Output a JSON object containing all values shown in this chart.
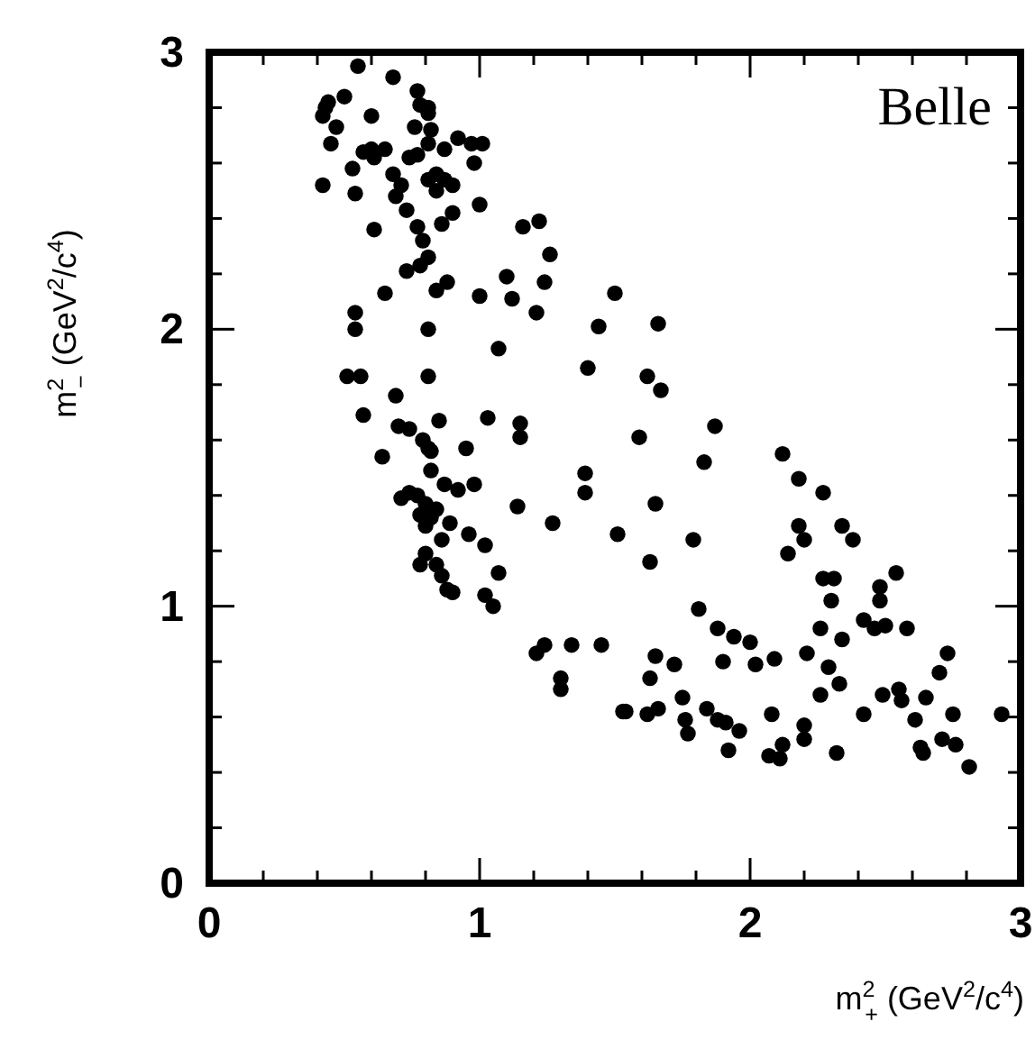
{
  "chart_data": {
    "type": "scatter",
    "xlabel": "m$^{2}$$_{+}$ (GeV$^{2}$/c$^{4}$)",
    "ylabel": "m$^{2}$$_{−}$ (GeV$^{2}$/c$^{4}$)",
    "annotations": [
      "Belle"
    ],
    "xlim": [
      0,
      3
    ],
    "ylim": [
      0,
      3
    ],
    "xticks": [
      0,
      {
        "value": 0.2,
        "label": null
      },
      {
        "value": 0.4,
        "label": null
      },
      {
        "value": 0.6,
        "label": null
      },
      {
        "value": 0.8,
        "label": null
      },
      1,
      {
        "value": 1.2,
        "label": null
      },
      {
        "value": 1.4,
        "label": null
      },
      {
        "value": 1.6,
        "label": null
      },
      {
        "value": 1.8,
        "label": null
      },
      2,
      {
        "value": 2.2,
        "label": null
      },
      {
        "value": 2.4,
        "label": null
      },
      {
        "value": 2.6,
        "label": null
      },
      {
        "value": 2.8,
        "label": null
      },
      3
    ],
    "yticks": [
      0,
      {
        "value": 0.2,
        "label": null
      },
      {
        "value": 0.4,
        "label": null
      },
      {
        "value": 0.6,
        "label": null
      },
      {
        "value": 0.8,
        "label": null
      },
      1,
      {
        "value": 1.2,
        "label": null
      },
      {
        "value": 1.4,
        "label": null
      },
      {
        "value": 1.6,
        "label": null
      },
      {
        "value": 1.8,
        "label": null
      },
      2,
      {
        "value": 2.2,
        "label": null
      },
      {
        "value": 2.4,
        "label": null
      },
      {
        "value": 2.6,
        "label": null
      },
      {
        "value": 2.8,
        "label": null
      },
      3
    ],
    "marker": "circle",
    "color": "#000000",
    "x": [
      0.55,
      0.68,
      0.77,
      0.5,
      0.44,
      0.43,
      0.42,
      0.47,
      0.6,
      0.78,
      0.81,
      0.81,
      0.76,
      0.45,
      0.57,
      0.61,
      0.65,
      0.6,
      0.74,
      0.77,
      0.81,
      0.82,
      0.87,
      0.92,
      0.97,
      1.01,
      0.98,
      0.53,
      0.42,
      0.54,
      0.68,
      0.71,
      0.69,
      0.81,
      0.84,
      0.84,
      0.87,
      0.9,
      1.0,
      0.73,
      0.77,
      0.9,
      0.86,
      0.61,
      0.79,
      0.81,
      0.78,
      0.73,
      0.84,
      0.88,
      0.65,
      1.0,
      1.1,
      1.12,
      1.16,
      1.22,
      1.26,
      1.24,
      1.21,
      1.5,
      1.44,
      1.07,
      1.4,
      0.54,
      0.54,
      0.81,
      0.51,
      0.56,
      0.81,
      0.69,
      0.57,
      0.7,
      0.74,
      0.85,
      1.03,
      1.15,
      1.15,
      0.79,
      0.81,
      0.95,
      0.64,
      0.82,
      0.82,
      0.87,
      0.92,
      0.98,
      0.74,
      0.71,
      0.77,
      0.8,
      0.78,
      0.82,
      0.8,
      0.84,
      0.89,
      0.86,
      0.96,
      1.02,
      0.8,
      0.78,
      0.84,
      0.86,
      0.88,
      0.9,
      1.02,
      1.05,
      1.07,
      1.14,
      1.27,
      1.39,
      1.39,
      1.51,
      1.21,
      1.24,
      1.34,
      1.45,
      1.3,
      1.3,
      1.53,
      1.66,
      1.62,
      1.67,
      1.87,
      1.59,
      1.83,
      1.65,
      1.63,
      1.79,
      2.12,
      2.18,
      2.27,
      2.18,
      2.2,
      2.34,
      2.38,
      2.14,
      2.27,
      2.31,
      2.3,
      2.48,
      2.48,
      2.54,
      1.81,
      1.88,
      1.94,
      2.0,
      1.65,
      1.72,
      1.9,
      2.02,
      2.09,
      2.21,
      2.26,
      2.34,
      2.29,
      2.33,
      2.26,
      2.42,
      2.46,
      2.5,
      2.58,
      1.63,
      1.75,
      1.54,
      1.62,
      1.66,
      1.76,
      1.77,
      1.84,
      1.88,
      1.91,
      1.96,
      1.92,
      2.08,
      2.07,
      2.11,
      2.12,
      2.2,
      2.2,
      2.32,
      2.42,
      2.49,
      2.55,
      2.56,
      2.65,
      2.61,
      2.63,
      2.64,
      2.7,
      2.73,
      2.75,
      2.71,
      2.76,
      2.81,
      2.93
    ],
    "values": [
      2.95,
      2.91,
      2.86,
      2.84,
      2.82,
      2.8,
      2.77,
      2.73,
      2.77,
      2.81,
      2.8,
      2.78,
      2.73,
      2.67,
      2.64,
      2.62,
      2.65,
      2.65,
      2.62,
      2.63,
      2.67,
      2.72,
      2.65,
      2.69,
      2.67,
      2.67,
      2.6,
      2.58,
      2.52,
      2.49,
      2.56,
      2.52,
      2.48,
      2.54,
      2.56,
      2.5,
      2.54,
      2.52,
      2.45,
      2.43,
      2.37,
      2.42,
      2.38,
      2.36,
      2.32,
      2.26,
      2.23,
      2.21,
      2.14,
      2.17,
      2.13,
      2.12,
      2.19,
      2.11,
      2.37,
      2.39,
      2.27,
      2.17,
      2.06,
      2.13,
      2.01,
      1.93,
      1.86,
      2.06,
      2.0,
      2.0,
      1.83,
      1.83,
      1.83,
      1.76,
      1.69,
      1.65,
      1.64,
      1.67,
      1.68,
      1.66,
      1.61,
      1.6,
      1.57,
      1.57,
      1.54,
      1.56,
      1.49,
      1.44,
      1.42,
      1.44,
      1.41,
      1.39,
      1.4,
      1.37,
      1.33,
      1.32,
      1.29,
      1.35,
      1.3,
      1.24,
      1.26,
      1.22,
      1.19,
      1.15,
      1.15,
      1.11,
      1.06,
      1.05,
      1.04,
      1.0,
      1.12,
      1.36,
      1.3,
      1.48,
      1.41,
      1.26,
      0.83,
      0.86,
      0.86,
      0.86,
      0.74,
      0.7,
      0.62,
      2.02,
      1.83,
      1.78,
      1.65,
      1.61,
      1.52,
      1.37,
      1.16,
      1.24,
      1.55,
      1.46,
      1.41,
      1.29,
      1.24,
      1.29,
      1.24,
      1.19,
      1.1,
      1.1,
      1.02,
      1.07,
      1.02,
      1.12,
      0.99,
      0.92,
      0.89,
      0.87,
      0.82,
      0.79,
      0.8,
      0.79,
      0.81,
      0.83,
      0.92,
      0.88,
      0.78,
      0.72,
      0.68,
      0.95,
      0.92,
      0.93,
      0.92,
      0.74,
      0.67,
      0.62,
      0.61,
      0.63,
      0.59,
      0.54,
      0.63,
      0.59,
      0.58,
      0.55,
      0.48,
      0.61,
      0.46,
      0.45,
      0.5,
      0.57,
      0.52,
      0.47,
      0.61,
      0.68,
      0.7,
      0.66,
      0.67,
      0.59,
      0.49,
      0.47,
      0.76,
      0.83,
      0.61,
      0.52,
      0.5,
      0.42,
      0.61
    ]
  }
}
